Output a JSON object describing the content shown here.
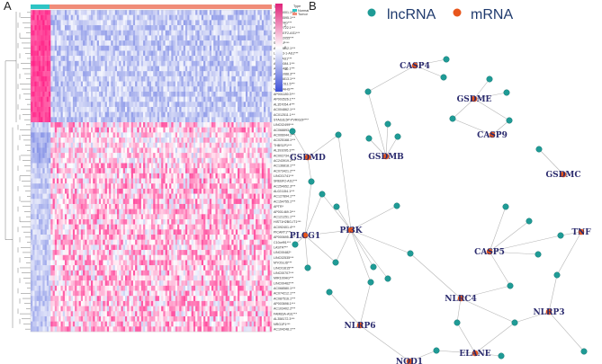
{
  "panel_a": {
    "letter": "A",
    "legend": {
      "type_title": "Type",
      "type_items": [
        {
          "label": "Normal",
          "color": "#2ec4c4"
        },
        {
          "label": "Tumor",
          "color": "#f08c78"
        }
      ],
      "scale_ticks": [
        "2",
        "0",
        "-2"
      ],
      "type_header": "Type"
    },
    "rows": [
      "AC006001.1***",
      "AC123595.1***",
      "MIR22HG***",
      "AC112722.1***",
      "ARHGEF2-AS1***",
      "LINC02055***",
      "SFTA1P***",
      "AC239812.1***",
      "LAMC3-1-AS1***",
      "HID1-AS1***",
      "AL136084.1***",
      "AL808486.1***",
      "AC091088.3***",
      "AC015813.1***",
      "AC011511.5***",
      "MIR99AHG***",
      "AP001189.3***",
      "AP003526.1***",
      "AL357054.4***",
      "AC004862.1***",
      "AC012511.1***",
      "STAG3L5P-PVRIG2P***",
      "LINC02499***",
      "AC068893.4***",
      "AC006044.1***",
      "AC025168.1***",
      "THBS1P1***",
      "AL391095.3***",
      "AC002734.1***",
      "AC243919.2***",
      "AC136818.1***",
      "AC073421.2***",
      "LINC01741***",
      "SREBF2-AS1***",
      "AC254952.3***",
      "AL021154.1***",
      "AC127894.1***",
      "AC154755.1***",
      "APTR*",
      "AP001469.3***",
      "AC121251.1***",
      "HIST1H2BG-IT1***",
      "AC092401.4***",
      "PICART1***",
      "AP000695.2***",
      "C10orf91***",
      "LASTR***",
      "LINC00482*",
      "LINC02535***",
      "MYOSLID***",
      "LINC01615***",
      "LINC00707***",
      "MIR100HG***",
      "LINC00462***",
      "AC068580.1***",
      "AC074212.1***",
      "AC087516.1***",
      "AP003698.1***",
      "AC103402.2***",
      "FAM83A-AS1***",
      "AL358172.3***",
      "NRG1P1***",
      "AC104248.1***"
    ]
  },
  "panel_b": {
    "letter": "B",
    "legend": [
      {
        "label": "lncRNA",
        "color": "#1f9b96"
      },
      {
        "label": "mRNA",
        "color": "#e8561c"
      }
    ],
    "mrna_nodes": [
      "CASP4",
      "GSDME",
      "GSDMD",
      "GSDMB",
      "CASP9",
      "GSDMC",
      "PLCG1",
      "PI3K",
      "CASP5",
      "TNF",
      "NLRC4",
      "NLRP3",
      "NLRP6",
      "NOD1",
      "ELANE"
    ]
  }
}
